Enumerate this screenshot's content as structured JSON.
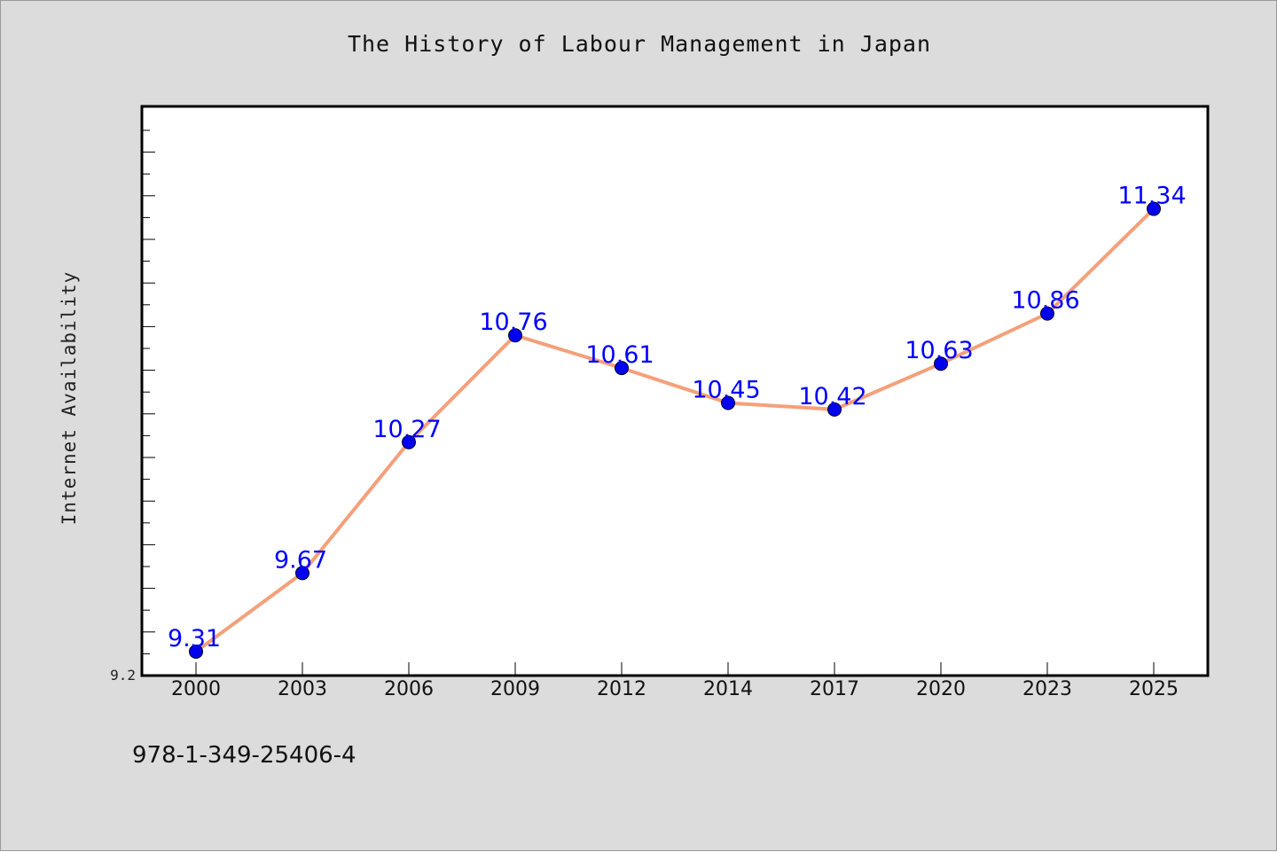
{
  "chart_data": {
    "type": "line",
    "title": "The History of Labour Management in Japan",
    "xlabel": "",
    "ylabel": "Internet Availability",
    "categories": [
      "2000",
      "2003",
      "2006",
      "2009",
      "2012",
      "2014",
      "2017",
      "2020",
      "2023",
      "2025"
    ],
    "series": [
      {
        "values": [
          9.31,
          9.67,
          10.27,
          10.76,
          10.61,
          10.45,
          10.42,
          10.63,
          10.86,
          11.34
        ]
      }
    ],
    "data_labels": [
      "9.31",
      "9.67",
      "10.27",
      "10.76",
      "10.61",
      "10.45",
      "10.42",
      "10.63",
      "10.86",
      "11.34"
    ],
    "y_tick_labels": [
      "9.2"
    ],
    "ylim": [
      9.2,
      11.8
    ],
    "grid": false,
    "legend": "none",
    "colors": {
      "line": "#f4a07a",
      "marker": "#0000ee",
      "data_label": "#0000ff",
      "background": "#dcdcdc",
      "plot_background": "#ffffff"
    }
  },
  "footer": {
    "isbn": "978-1-349-25406-4"
  }
}
